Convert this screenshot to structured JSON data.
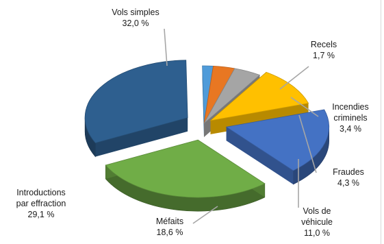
{
  "chart_data": {
    "type": "pie",
    "title": "",
    "style": "3d-exploded",
    "legend": "none",
    "slices": [
      {
        "label_lines": [
          "Vols simples"
        ],
        "value": 32.0,
        "value_text": "32,0 %",
        "color": "#2E5F8F"
      },
      {
        "label_lines": [
          "Recels"
        ],
        "value": 1.7,
        "value_text": "1,7 %",
        "color": "#4F9BD9"
      },
      {
        "label_lines": [
          "Incendies",
          "criminels"
        ],
        "value": 3.4,
        "value_text": "3,4 %",
        "color": "#E87722"
      },
      {
        "label_lines": [
          "Fraudes"
        ],
        "value": 4.3,
        "value_text": "4,3 %",
        "color": "#A5A5A5"
      },
      {
        "label_lines": [
          "Vols de",
          "véhicule"
        ],
        "value": 11.0,
        "value_text": "11,0 %",
        "color": "#FFC000"
      },
      {
        "label_lines": [
          "Méfaits"
        ],
        "value": 18.6,
        "value_text": "18,6 %",
        "color": "#4472C4"
      },
      {
        "label_lines": [
          "Introductions",
          "par effraction"
        ],
        "value": 29.1,
        "value_text": "29,1 %",
        "color": "#70AD47"
      }
    ]
  }
}
